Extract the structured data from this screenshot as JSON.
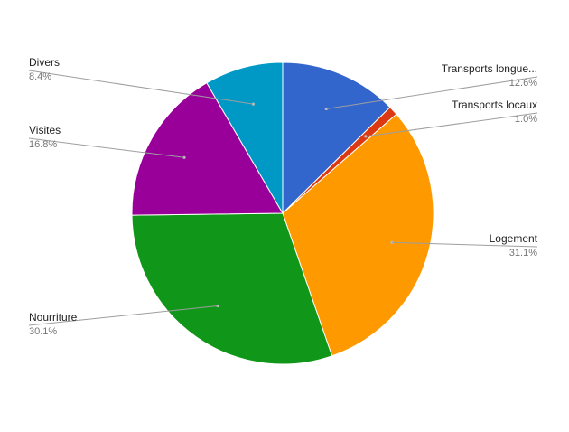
{
  "chart_data": {
    "type": "pie",
    "title": "",
    "legend": "none",
    "labels_shown": "name-and-percent",
    "slices": [
      {
        "name": "Transports longue...",
        "value": 12.6,
        "label": "12.6%",
        "color": "#3366cc"
      },
      {
        "name": "Transports locaux",
        "value": 1.0,
        "label": "1.0%",
        "color": "#dc3912"
      },
      {
        "name": "Logement",
        "value": 31.1,
        "label": "31.1%",
        "color": "#ff9900"
      },
      {
        "name": "Nourriture",
        "value": 30.1,
        "label": "30.1%",
        "color": "#109618"
      },
      {
        "name": "Visites",
        "value": 16.8,
        "label": "16.8%",
        "color": "#990099"
      },
      {
        "name": "Divers",
        "value": 8.4,
        "label": "8.4%",
        "color": "#0099c6"
      }
    ]
  }
}
